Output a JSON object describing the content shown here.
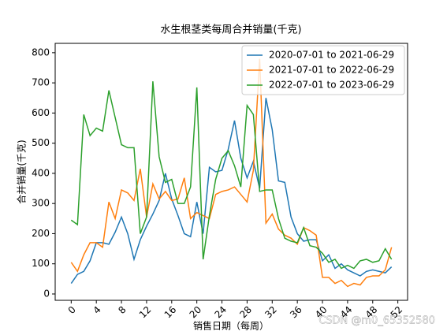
{
  "chart_data": {
    "type": "line",
    "title": "水生根茎类每周合并销量(千克)",
    "x_label": "销售日期（每周）",
    "y_label": "合并销量(千克)",
    "x": [
      0,
      1,
      2,
      3,
      4,
      5,
      6,
      7,
      8,
      9,
      10,
      11,
      12,
      13,
      14,
      15,
      16,
      17,
      18,
      19,
      20,
      21,
      22,
      23,
      24,
      25,
      26,
      27,
      28,
      29,
      30,
      31,
      32,
      33,
      34,
      35,
      36,
      37,
      38,
      39,
      40,
      41,
      42,
      43,
      44,
      45,
      46,
      47,
      48,
      49,
      50,
      51
    ],
    "series": [
      {
        "name": "2020-07-01 to 2021-06-29",
        "color": "#1f77b4",
        "values": [
          35,
          65,
          75,
          110,
          170,
          170,
          165,
          205,
          255,
          200,
          115,
          180,
          225,
          265,
          310,
          400,
          315,
          260,
          200,
          190,
          305,
          200,
          420,
          405,
          410,
          480,
          575,
          450,
          385,
          440,
          350,
          650,
          545,
          375,
          370,
          255,
          200,
          175,
          180,
          180,
          110,
          130,
          85,
          100,
          80,
          70,
          60,
          75,
          80,
          75,
          70,
          90
        ]
      },
      {
        "name": "2021-07-01 to 2022-06-29",
        "color": "#ff7f0e",
        "values": [
          105,
          75,
          130,
          170,
          170,
          155,
          305,
          250,
          345,
          335,
          310,
          415,
          255,
          365,
          315,
          340,
          310,
          315,
          385,
          250,
          270,
          260,
          250,
          330,
          340,
          345,
          355,
          330,
          305,
          410,
          780,
          235,
          265,
          215,
          195,
          185,
          165,
          220,
          210,
          195,
          55,
          55,
          35,
          45,
          25,
          35,
          30,
          55,
          60,
          60,
          80,
          155
        ]
      },
      {
        "name": "2022-07-01 to 2023-06-29",
        "color": "#2ca02c",
        "values": [
          245,
          230,
          595,
          525,
          550,
          540,
          675,
          585,
          495,
          485,
          485,
          200,
          255,
          705,
          455,
          370,
          380,
          300,
          300,
          355,
          685,
          115,
          260,
          380,
          450,
          475,
          425,
          355,
          625,
          595,
          340,
          345,
          345,
          250,
          185,
          175,
          170,
          220,
          160,
          155,
          135,
          105,
          115,
          85,
          95,
          85,
          110,
          115,
          105,
          110,
          150,
          115
        ]
      }
    ],
    "xlim": [
      -2.55,
      53.55
    ],
    "xticks": [
      0,
      4,
      8,
      12,
      16,
      20,
      24,
      28,
      32,
      36,
      40,
      44,
      48,
      52
    ],
    "ylim": [
      -21,
      831
    ],
    "yticks": [
      0,
      100,
      200,
      300,
      400,
      500,
      600,
      700,
      800
    ],
    "legend": "upper right",
    "watermark": "CSDN @m0_65352580"
  }
}
